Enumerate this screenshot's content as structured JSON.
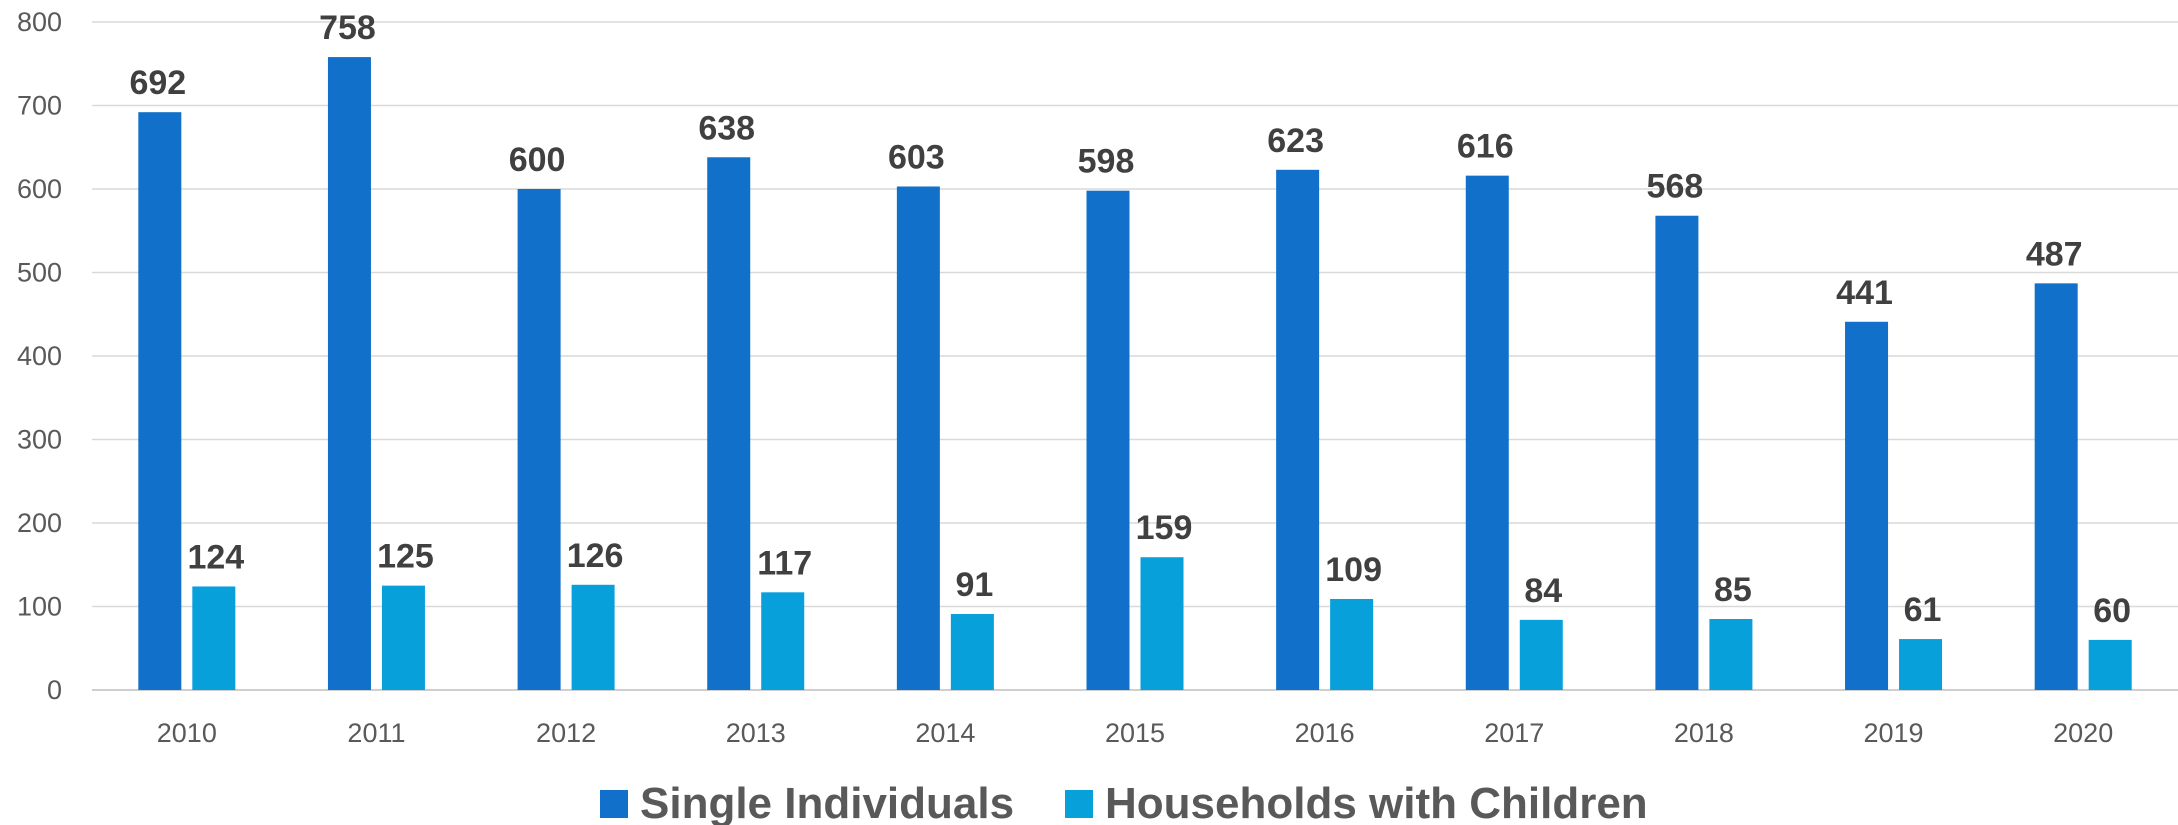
{
  "chart_data": {
    "type": "bar",
    "title": "",
    "xlabel": "",
    "ylabel": "",
    "categories": [
      "2010",
      "2011",
      "2012",
      "2013",
      "2014",
      "2015",
      "2016",
      "2017",
      "2018",
      "2019",
      "2020"
    ],
    "series": [
      {
        "name": "Single Individuals",
        "color": "#1170C9",
        "values": [
          692,
          758,
          600,
          638,
          603,
          598,
          623,
          616,
          568,
          441,
          487
        ]
      },
      {
        "name": "Households with Children",
        "color": "#07A0DB",
        "values": [
          124,
          125,
          126,
          117,
          91,
          159,
          109,
          84,
          85,
          61,
          60
        ]
      }
    ],
    "ylim": [
      0,
      800
    ],
    "yticks": [
      0,
      100,
      200,
      300,
      400,
      500,
      600,
      700,
      800
    ],
    "grid": true,
    "legend_position": "bottom",
    "data_labels": true
  }
}
